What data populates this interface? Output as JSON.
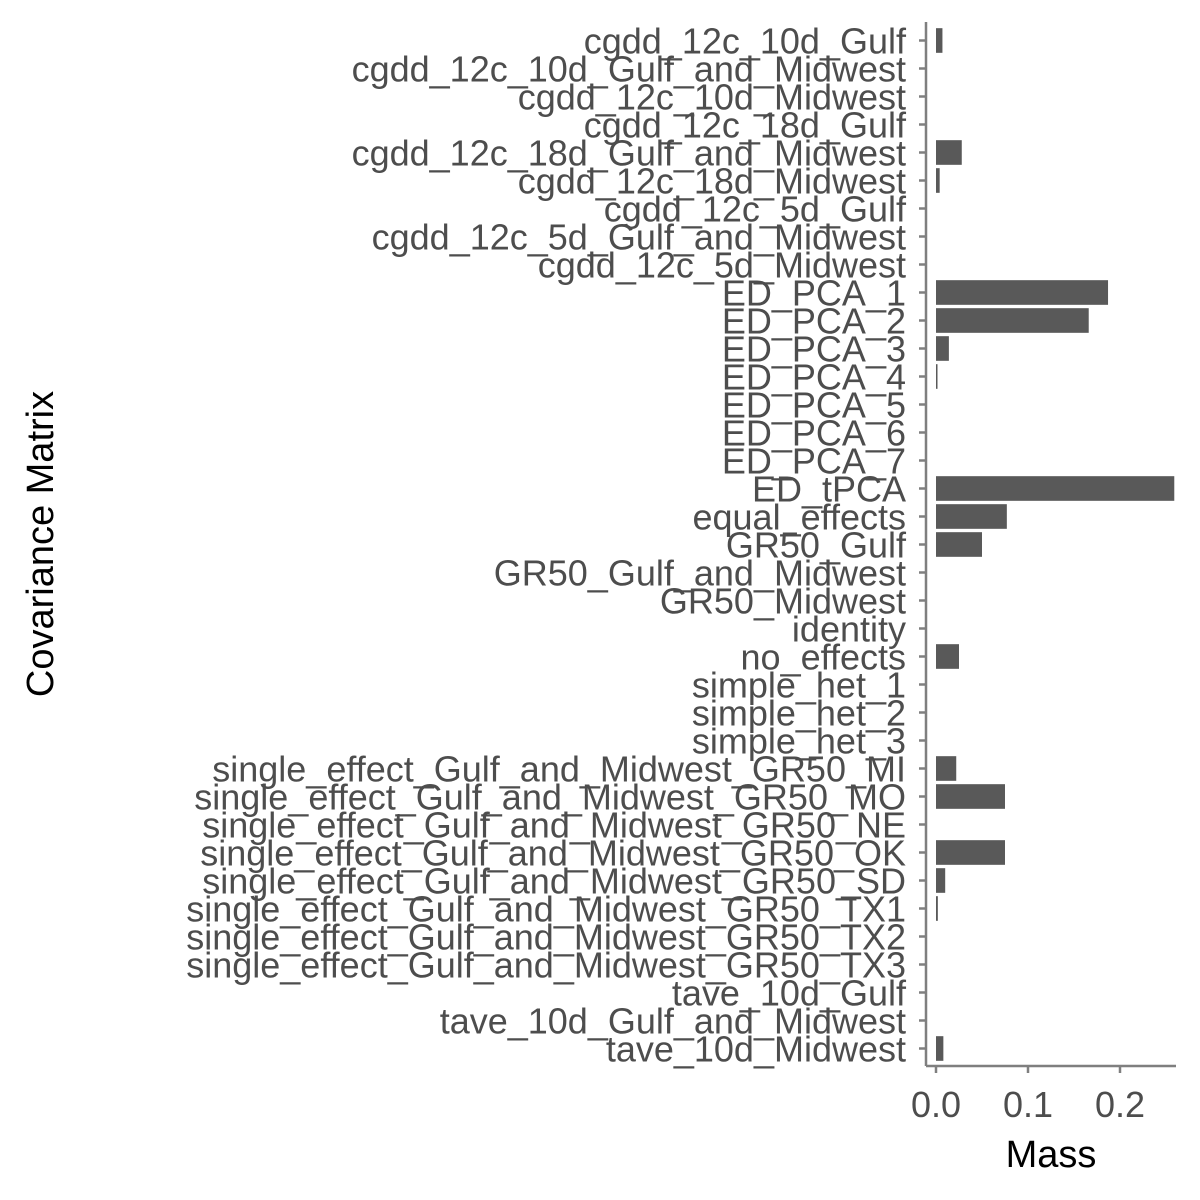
{
  "chart_data": {
    "type": "bar",
    "orientation": "horizontal",
    "xlabel": "Mass",
    "ylabel": "Covariance Matrix",
    "xlim": [
      0,
      0.26
    ],
    "xticks": [
      0.0,
      0.1,
      0.2
    ],
    "xtick_labels": [
      "0.0",
      "0.1",
      "0.2"
    ],
    "grid": false,
    "bar_color": "#595959",
    "categories": [
      "cgdd_12c_10d_Gulf",
      "cgdd_12c_10d_Gulf_and_Midwest",
      "cgdd_12c_10d_Midwest",
      "cgdd_12c_18d_Gulf",
      "cgdd_12c_18d_Gulf_and_Midwest",
      "cgdd_12c_18d_Midwest",
      "cgdd_12c_5d_Gulf",
      "cgdd_12c_5d_Gulf_and_Midwest",
      "cgdd_12c_5d_Midwest",
      "ED_PCA_1",
      "ED_PCA_2",
      "ED_PCA_3",
      "ED_PCA_4",
      "ED_PCA_5",
      "ED_PCA_6",
      "ED_PCA_7",
      "ED_tPCA",
      "equal_effects",
      "GR50_Gulf",
      "GR50_Gulf_and_Midwest",
      "GR50_Midwest",
      "identity",
      "no_effects",
      "simple_het_1",
      "simple_het_2",
      "simple_het_3",
      "single_effect_Gulf_and_Midwest_GR50_MI",
      "single_effect_Gulf_and_Midwest_GR50_MO",
      "single_effect_Gulf_and_Midwest_GR50_NE",
      "single_effect_Gulf_and_Midwest_GR50_OK",
      "single_effect_Gulf_and_Midwest_GR50_SD",
      "single_effect_Gulf_and_Midwest_GR50_TX1",
      "single_effect_Gulf_and_Midwest_GR50_TX2",
      "single_effect_Gulf_and_Midwest_GR50_TX3",
      "tave_10d_Gulf",
      "tave_10d_Gulf_and_Midwest",
      "tave_10d_Midwest"
    ],
    "values": [
      0.007,
      0,
      0,
      0,
      0.028,
      0.004,
      0,
      0,
      0,
      0.187,
      0.166,
      0.014,
      0.001,
      0,
      0,
      0,
      0.259,
      0.077,
      0.05,
      0,
      0,
      0,
      0.025,
      0,
      0,
      0,
      0.022,
      0.075,
      0,
      0.075,
      0.01,
      0.002,
      0,
      0,
      0,
      0,
      0.008
    ]
  }
}
